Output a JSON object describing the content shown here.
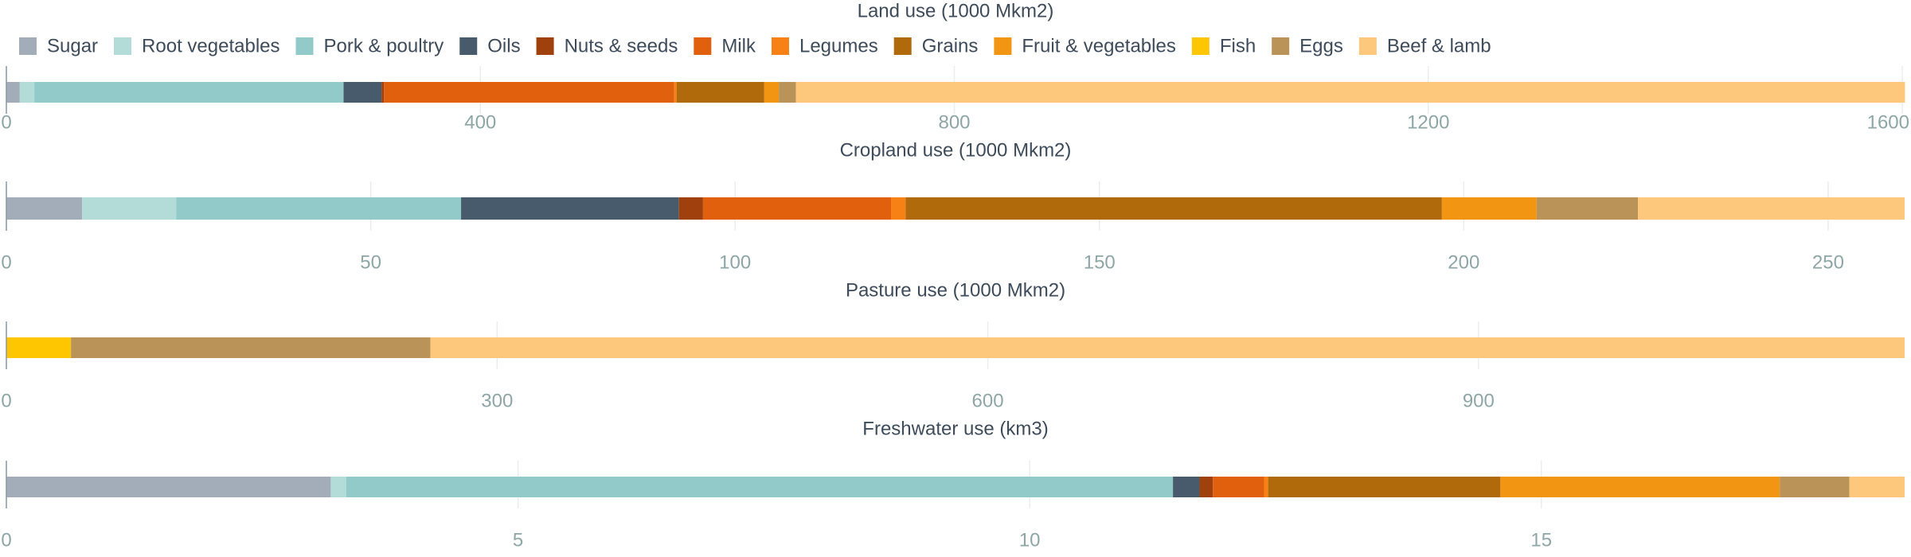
{
  "chart_data": [
    {
      "type": "bar",
      "orientation": "horizontal",
      "stacked": true,
      "legend": "top",
      "grid": true,
      "title": "Land use (1000 Mkm2)",
      "xlim": [
        0,
        1602
      ],
      "xticks": [
        0,
        400,
        800,
        1200,
        1600
      ],
      "series": [
        {
          "name": "Sugar",
          "color": "#a2adb9",
          "values": [
            11.3
          ]
        },
        {
          "name": "Root vegetables",
          "color": "#b3dbd8",
          "values": [
            12.3
          ]
        },
        {
          "name": "Pork & poultry",
          "color": "#92c9c9",
          "values": [
            261
          ]
        },
        {
          "name": "Oils",
          "color": "#475b6c",
          "values": [
            32
          ]
        },
        {
          "name": "Nuts & seeds",
          "color": "#a0410d",
          "values": [
            2
          ]
        },
        {
          "name": "Milk",
          "color": "#e0600e",
          "values": [
            245
          ]
        },
        {
          "name": "Legumes",
          "color": "#f78114",
          "values": [
            2
          ]
        },
        {
          "name": "Grains",
          "color": "#b06a0b",
          "values": [
            74
          ]
        },
        {
          "name": "Fruit & vegetables",
          "color": "#f29513",
          "values": [
            12.3
          ]
        },
        {
          "name": "Fish",
          "color": "#fdc601",
          "values": [
            0
          ]
        },
        {
          "name": "Eggs",
          "color": "#b99358",
          "values": [
            14.4
          ]
        },
        {
          "name": "Beef & lamb",
          "color": "#fdc87c",
          "values": [
            936
          ]
        }
      ]
    },
    {
      "type": "bar",
      "orientation": "horizontal",
      "stacked": true,
      "grid": true,
      "title": "Cropland use (1000 Mkm2)",
      "xlim": [
        0,
        260.5
      ],
      "xticks": [
        0,
        50,
        100,
        150,
        200,
        250
      ],
      "series": [
        {
          "name": "Sugar",
          "color": "#a2adb9",
          "values": [
            10.4
          ]
        },
        {
          "name": "Root vegetables",
          "color": "#b3dbd8",
          "values": [
            12.9
          ]
        },
        {
          "name": "Pork & poultry",
          "color": "#92c9c9",
          "values": [
            39.1
          ]
        },
        {
          "name": "Oils",
          "color": "#475b6c",
          "values": [
            29.9
          ]
        },
        {
          "name": "Nuts & seeds",
          "color": "#a0410d",
          "values": [
            3.3
          ]
        },
        {
          "name": "Milk",
          "color": "#e0600e",
          "values": [
            25.8
          ]
        },
        {
          "name": "Legumes",
          "color": "#f78114",
          "values": [
            2.0
          ]
        },
        {
          "name": "Grains",
          "color": "#b06a0b",
          "values": [
            73.6
          ]
        },
        {
          "name": "Fruit & vegetables",
          "color": "#f29513",
          "values": [
            13.0
          ]
        },
        {
          "name": "Fish",
          "color": "#fdc601",
          "values": [
            0
          ]
        },
        {
          "name": "Eggs",
          "color": "#b99358",
          "values": [
            13.9
          ]
        },
        {
          "name": "Beef & lamb",
          "color": "#fdc87c",
          "values": [
            36.6
          ]
        }
      ]
    },
    {
      "type": "bar",
      "orientation": "horizontal",
      "stacked": true,
      "grid": true,
      "title": "Pasture use (1000 Mkm2)",
      "xlim": [
        0,
        1160.5
      ],
      "xticks": [
        0,
        300,
        600,
        900
      ],
      "series": [
        {
          "name": "Sugar",
          "color": "#a2adb9",
          "values": [
            0
          ]
        },
        {
          "name": "Root vegetables",
          "color": "#b3dbd8",
          "values": [
            0
          ]
        },
        {
          "name": "Pork & poultry",
          "color": "#92c9c9",
          "values": [
            0
          ]
        },
        {
          "name": "Oils",
          "color": "#475b6c",
          "values": [
            0
          ]
        },
        {
          "name": "Nuts & seeds",
          "color": "#a0410d",
          "values": [
            0
          ]
        },
        {
          "name": "Milk",
          "color": "#e0600e",
          "values": [
            0
          ]
        },
        {
          "name": "Legumes",
          "color": "#f78114",
          "values": [
            0
          ]
        },
        {
          "name": "Grains",
          "color": "#b06a0b",
          "values": [
            0
          ]
        },
        {
          "name": "Fruit & vegetables",
          "color": "#f29513",
          "values": [
            0
          ]
        },
        {
          "name": "Fish",
          "color": "#fdc601",
          "values": [
            39.5
          ]
        },
        {
          "name": "Eggs",
          "color": "#b99358",
          "values": [
            219.7
          ]
        },
        {
          "name": "Beef & lamb",
          "color": "#fdc87c",
          "values": [
            901.3
          ]
        }
      ]
    },
    {
      "type": "bar",
      "orientation": "horizontal",
      "stacked": true,
      "grid": true,
      "title": "Freshwater use (km3)",
      "xlim": [
        0,
        18.55
      ],
      "xticks": [
        0,
        5,
        10,
        15
      ],
      "series": [
        {
          "name": "Sugar",
          "color": "#a2adb9",
          "values": [
            3.17
          ]
        },
        {
          "name": "Root vegetables",
          "color": "#b3dbd8",
          "values": [
            0.15
          ]
        },
        {
          "name": "Pork & poultry",
          "color": "#92c9c9",
          "values": [
            8.08
          ]
        },
        {
          "name": "Oils",
          "color": "#475b6c",
          "values": [
            0.26
          ]
        },
        {
          "name": "Nuts & seeds",
          "color": "#a0410d",
          "values": [
            0.13
          ]
        },
        {
          "name": "Milk",
          "color": "#e0600e",
          "values": [
            0.5
          ]
        },
        {
          "name": "Legumes",
          "color": "#f78114",
          "values": [
            0.04
          ]
        },
        {
          "name": "Grains",
          "color": "#b06a0b",
          "values": [
            2.27
          ]
        },
        {
          "name": "Fruit & vegetables",
          "color": "#f29513",
          "values": [
            2.73
          ]
        },
        {
          "name": "Fish",
          "color": "#fdc601",
          "values": [
            0
          ]
        },
        {
          "name": "Eggs",
          "color": "#b99358",
          "values": [
            0.68
          ]
        },
        {
          "name": "Beef & lamb",
          "color": "#fdc87c",
          "values": [
            0.54
          ]
        }
      ]
    }
  ]
}
